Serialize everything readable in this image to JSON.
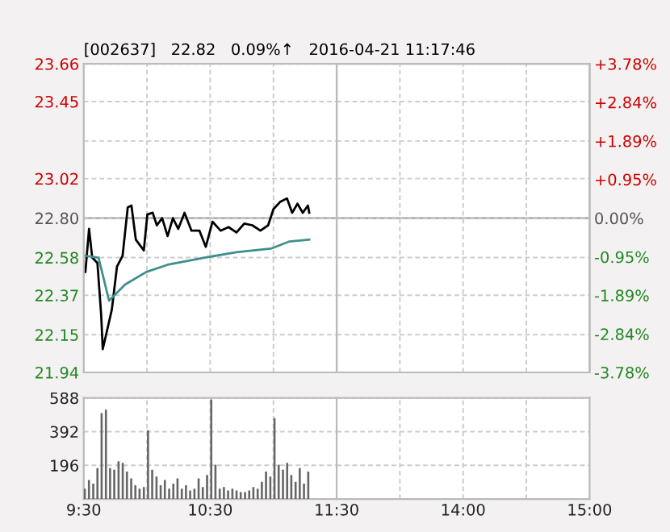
{
  "chart_data": [
    {
      "type": "line",
      "title": "[002637]   22.82   0.09%↑   2016-04-21 11:17:46",
      "xlim": [
        9.5,
        11.5
      ],
      "xticks": [
        {
          "value": 9.5,
          "label": null
        },
        {
          "value": 10,
          "label": null
        },
        {
          "value": 10.5,
          "label": null
        },
        {
          "value": 11,
          "label": null
        },
        {
          "value": 11.5,
          "label": null
        }
      ],
      "ylim": [
        21.94,
        23.66
      ],
      "yticks": [
        21.94,
        22.15,
        22.37,
        22.58,
        {
          "value": 22.8,
          "label": "22.80"
        },
        23.02,
        {
          "value": 23.23,
          "label": null
        },
        23.45,
        23.66
      ],
      "ref_lines": [
        {
          "axis": "y",
          "value": 22.8,
          "color": "#b0b0b0"
        }
      ],
      "grid": true,
      "tick_labels": "y",
      "line_style": "solid",
      "series": [
        {
          "color": "#000000",
          "x": [
            9.513,
            9.542,
            9.567,
            9.608,
            9.638,
            9.65,
            9.68,
            9.722,
            9.763,
            9.807,
            9.848,
            9.877,
            9.912,
            9.975,
            10.003,
            10.045,
            10.078,
            10.12,
            10.163,
            10.205,
            10.247,
            10.297,
            10.352,
            10.415,
            10.465,
            10.518,
            10.582,
            10.645,
            10.708,
            10.77,
            10.833,
            10.897,
            10.958,
            11.0,
            11.052,
            11.107,
            11.148,
            11.19,
            11.232,
            11.273,
            11.283
          ],
          "values": [
            22.5,
            22.74,
            22.58,
            22.55,
            22.26,
            22.07,
            22.16,
            22.29,
            22.53,
            22.59,
            22.86,
            22.87,
            22.68,
            22.62,
            22.82,
            22.83,
            22.76,
            22.8,
            22.7,
            22.8,
            22.74,
            22.83,
            22.73,
            22.73,
            22.64,
            22.78,
            22.73,
            22.75,
            22.72,
            22.77,
            22.76,
            22.73,
            22.76,
            22.85,
            22.89,
            22.91,
            22.83,
            22.88,
            22.83,
            22.87,
            22.83
          ]
        },
        {
          "color": "#3f8f8c",
          "x": [
            9.513,
            9.617,
            9.7,
            9.827,
            9.995,
            10.163,
            10.457,
            10.708,
            10.98,
            11.127,
            11.283
          ],
          "values": [
            22.59,
            22.58,
            22.34,
            22.43,
            22.5,
            22.54,
            22.58,
            22.61,
            22.63,
            22.67,
            22.68
          ]
        }
      ]
    },
    {
      "type": "line",
      "xlim": [
        13,
        15
      ],
      "xticks": [
        {
          "value": 13.5,
          "label": null
        },
        {
          "value": 14,
          "label": null
        },
        {
          "value": 14.5,
          "label": null
        },
        {
          "value": 15,
          "label": null
        }
      ],
      "ylim": [
        21.94,
        23.66
      ],
      "yticks": [
        21.94,
        22.15,
        22.37,
        22.58,
        22.8,
        23.02,
        23.23,
        23.45,
        23.66
      ],
      "y2lim": [
        -3.78,
        3.78
      ],
      "y2ticks": [
        {
          "value": -3.78,
          "label": "-3.78%"
        },
        {
          "value": -2.84,
          "label": "-2.84%"
        },
        {
          "value": -1.89,
          "label": "-1.89%"
        },
        {
          "value": -0.95,
          "label": "-0.95%"
        },
        {
          "value": 0,
          "label": "0.00%"
        },
        {
          "value": 0.95,
          "label": "+0.95%"
        },
        {
          "value": 1.89,
          "label": "+1.89%"
        },
        {
          "value": 2.84,
          "label": "+2.84%"
        },
        {
          "value": 3.78,
          "label": "+3.78%"
        }
      ],
      "ref_lines": [
        {
          "axis": "y",
          "value": 22.8,
          "color": "#b0b0b0"
        }
      ],
      "grid": true,
      "tick_labels": false
    },
    {
      "type": "bar",
      "xlim": [
        9.5,
        11.5
      ],
      "xticks": [
        {
          "value": 9.5,
          "label": "9:30"
        },
        {
          "value": 10,
          "label": null
        },
        {
          "value": 10.5,
          "label": "10:30"
        },
        {
          "value": 11,
          "label": null
        },
        {
          "value": 11.5,
          "label": "11:30"
        }
      ],
      "ylim": [
        0,
        588
      ],
      "yticks": [
        196,
        392,
        588
      ],
      "grid": true,
      "series": [
        {
          "color": "#666666",
          "x": [
            9.5,
            9.533,
            9.567,
            9.6,
            9.633,
            9.667,
            9.7,
            9.733,
            9.767,
            9.8,
            9.833,
            9.867,
            9.9,
            9.933,
            9.967,
            10,
            10.033,
            10.067,
            10.1,
            10.133,
            10.167,
            10.2,
            10.233,
            10.267,
            10.3,
            10.333,
            10.367,
            10.4,
            10.433,
            10.467,
            10.5,
            10.533,
            10.567,
            10.6,
            10.633,
            10.667,
            10.7,
            10.733,
            10.767,
            10.8,
            10.833,
            10.867,
            10.9,
            10.933,
            10.967,
            11,
            11.033,
            11.067,
            11.1,
            11.133,
            11.167,
            11.2,
            11.233,
            11.267
          ],
          "values": [
            60,
            110,
            90,
            180,
            500,
            520,
            180,
            170,
            220,
            210,
            160,
            120,
            80,
            60,
            70,
            400,
            170,
            130,
            80,
            110,
            60,
            90,
            120,
            60,
            80,
            50,
            60,
            120,
            70,
            140,
            580,
            200,
            60,
            70,
            50,
            60,
            50,
            40,
            40,
            50,
            70,
            60,
            100,
            160,
            130,
            470,
            200,
            170,
            210,
            140,
            100,
            180,
            90,
            160
          ]
        }
      ]
    },
    {
      "type": "bar",
      "xlim": [
        13,
        15
      ],
      "xticks": [
        {
          "value": 13.5,
          "label": null
        },
        {
          "value": 14,
          "label": "14:00"
        },
        {
          "value": 14.5,
          "label": null
        },
        {
          "value": 15,
          "label": "15:00"
        }
      ],
      "ylim": [
        0,
        588
      ],
      "yticks": [
        196,
        392,
        588
      ],
      "grid": true,
      "tick_labels": "x"
    }
  ]
}
